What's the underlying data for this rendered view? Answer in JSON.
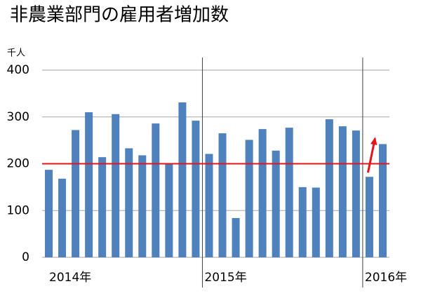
{
  "chart_data": {
    "type": "bar",
    "title": "非農業部門の雇用者増加数",
    "y_unit": "千人",
    "categories": [
      "2014年",
      null,
      null,
      null,
      null,
      null,
      null,
      null,
      null,
      null,
      null,
      null,
      "2015年",
      null,
      null,
      null,
      null,
      null,
      null,
      null,
      null,
      null,
      null,
      null,
      "2016年",
      null
    ],
    "values": [
      187,
      168,
      272,
      310,
      214,
      306,
      233,
      218,
      286,
      200,
      331,
      292,
      221,
      265,
      84,
      251,
      274,
      228,
      277,
      150,
      149,
      295,
      280,
      271,
      172,
      242
    ],
    "color": "#4f81bd",
    "ylim": [
      0,
      400
    ],
    "yticks": [
      0,
      100,
      200,
      300,
      400
    ],
    "grid": true,
    "reference_line": {
      "value": 200,
      "color": "#e3141b"
    }
  }
}
